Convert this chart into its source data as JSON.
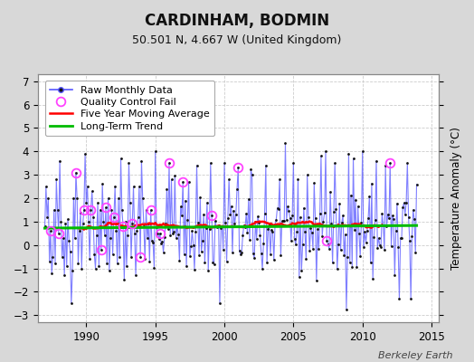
{
  "title": "CARDINHAM, BODMIN",
  "subtitle": "50.501 N, 4.667 W (United Kingdom)",
  "ylabel": "Temperature Anomaly (°C)",
  "credit": "Berkeley Earth",
  "xlim": [
    1986.5,
    2015.5
  ],
  "ylim": [
    -3.3,
    7.3
  ],
  "yticks": [
    -3,
    -2,
    -1,
    0,
    1,
    2,
    3,
    4,
    5,
    6,
    7
  ],
  "xticks": [
    1990,
    1995,
    2000,
    2005,
    2010,
    2015
  ],
  "bg_color": "#d8d8d8",
  "plot_bg_color": "#ffffff",
  "raw_color": "#5555ff",
  "raw_marker_color": "#111111",
  "ma_color": "#ff0000",
  "trend_color": "#00bb00",
  "qc_color": "#ff44ff",
  "grid_color": "#c0c0c0",
  "title_fontsize": 12,
  "subtitle_fontsize": 9,
  "legend_fontsize": 8,
  "credit_fontsize": 8,
  "seed": 42,
  "n_months": 324,
  "start_year": 1987.0,
  "trend_intercept": 0.72,
  "trend_slope_per_month": 0.00035,
  "ma_window": 60,
  "qc_indices": [
    5,
    12,
    27,
    34,
    40,
    49,
    53,
    60,
    68,
    76,
    83,
    92,
    100,
    108,
    120,
    145,
    168,
    245,
    300
  ]
}
